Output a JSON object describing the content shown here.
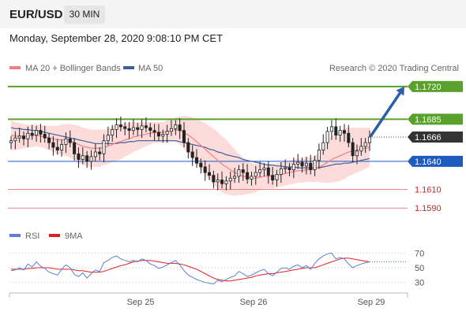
{
  "header": {
    "symbol": "EUR/USD",
    "timeframe": "30 MIN",
    "datetime": "Monday, September 28, 2020 9:08:10 PM CET"
  },
  "colors": {
    "resistance": "#5aa02c",
    "support": "#1e5bbf",
    "support_light": "#f08080",
    "current": "#333333",
    "bollinger_fill": "#fbd5d5",
    "ma20": "#f08080",
    "ma50": "#3d5f9e",
    "rsi": "#5b7fd6",
    "rsi_ma": "#e02020",
    "arrow": "#2b5fa8"
  },
  "chart_data": [
    {
      "type": "candlestick",
      "x_ticks": [
        "Sep 25",
        "Sep 26",
        "Sep 29"
      ],
      "ylim": [
        1.1575,
        1.173
      ],
      "legend": [
        {
          "name": "MA 20 + Bollinger Bands",
          "color": "#f08080"
        },
        {
          "name": "MA 50",
          "color": "#3d5f9e"
        }
      ],
      "legend_position": "top-left",
      "watermark": "Research © 2020 Trading Central",
      "levels": [
        {
          "value": 1.172,
          "label": "1.1720",
          "kind": "resistance"
        },
        {
          "value": 1.1685,
          "label": "1.1685",
          "kind": "resistance"
        },
        {
          "value": 1.1666,
          "label": "1.1666",
          "kind": "current"
        },
        {
          "value": 1.164,
          "label": "1.1640",
          "kind": "support"
        },
        {
          "value": 1.161,
          "label": "1.1610",
          "kind": "support_light"
        },
        {
          "value": 1.159,
          "label": "1.1590",
          "kind": "support_light"
        }
      ],
      "close": [
        1.1662,
        1.1665,
        1.1667,
        1.1664,
        1.167,
        1.1668,
        1.1673,
        1.1669,
        1.1665,
        1.166,
        1.1655,
        1.1652,
        1.1658,
        1.1664,
        1.166,
        1.1648,
        1.1642,
        1.1646,
        1.164,
        1.1645,
        1.165,
        1.1648,
        1.1662,
        1.1668,
        1.1674,
        1.1679,
        1.1677,
        1.1675,
        1.1673,
        1.1676,
        1.1674,
        1.1678,
        1.1676,
        1.1673,
        1.1671,
        1.1667,
        1.1669,
        1.1672,
        1.1675,
        1.1679,
        1.1673,
        1.166,
        1.165,
        1.1644,
        1.1638,
        1.1634,
        1.1628,
        1.1625,
        1.1618,
        1.162,
        1.1616,
        1.1619,
        1.1622,
        1.1624,
        1.1631,
        1.1628,
        1.1621,
        1.1624,
        1.1628,
        1.1631,
        1.1633,
        1.1625,
        1.162,
        1.1626,
        1.1632,
        1.1633,
        1.1631,
        1.1637,
        1.1639,
        1.1635,
        1.1638,
        1.1631,
        1.1641,
        1.1652,
        1.166,
        1.1672,
        1.1677,
        1.1668,
        1.1673,
        1.167,
        1.166,
        1.1646,
        1.1651,
        1.1656,
        1.166,
        1.1666
      ],
      "ma20": [
        1.1668,
        1.1667,
        1.1667,
        1.1667,
        1.1667,
        1.1667,
        1.1668,
        1.1667,
        1.1666,
        1.1665,
        1.1664,
        1.1663,
        1.1663,
        1.1663,
        1.1662,
        1.166,
        1.1658,
        1.1656,
        1.1655,
        1.1654,
        1.1654,
        1.1654,
        1.1655,
        1.1656,
        1.1658,
        1.166,
        1.1661,
        1.1663,
        1.1664,
        1.1666,
        1.1667,
        1.1668,
        1.1669,
        1.167,
        1.1671,
        1.1671,
        1.1671,
        1.1672,
        1.1673,
        1.1674,
        1.1673,
        1.1671,
        1.1668,
        1.1665,
        1.1661,
        1.1657,
        1.1653,
        1.1649,
        1.1645,
        1.1641,
        1.1637,
        1.1634,
        1.1631,
        1.1628,
        1.1626,
        1.1624,
        1.1623,
        1.1622,
        1.1622,
        1.1623,
        1.1624,
        1.1624,
        1.1624,
        1.1625,
        1.1626,
        1.1627,
        1.1628,
        1.1629,
        1.163,
        1.163,
        1.1631,
        1.1631,
        1.1632,
        1.1634,
        1.1636,
        1.1639,
        1.1642,
        1.1644,
        1.1646,
        1.1648,
        1.165,
        1.1651,
        1.1652,
        1.1653,
        1.1654,
        1.1655
      ],
      "ma50": [
        1.1676,
        1.1675,
        1.1675,
        1.1674,
        1.1674,
        1.1673,
        1.1673,
        1.1672,
        1.1671,
        1.167,
        1.1669,
        1.1668,
        1.1667,
        1.1666,
        1.1665,
        1.1664,
        1.1663,
        1.1662,
        1.1661,
        1.166,
        1.1659,
        1.1659,
        1.1659,
        1.1659,
        1.1659,
        1.1659,
        1.166,
        1.166,
        1.1661,
        1.1661,
        1.1662,
        1.1662,
        1.1662,
        1.1662,
        1.1662,
        1.1662,
        1.1662,
        1.1662,
        1.1662,
        1.1662,
        1.1661,
        1.166,
        1.1659,
        1.1658,
        1.1657,
        1.1656,
        1.1655,
        1.1653,
        1.1652,
        1.165,
        1.1649,
        1.1647,
        1.1646,
        1.1645,
        1.1644,
        1.1642,
        1.1641,
        1.164,
        1.1639,
        1.1638,
        1.1637,
        1.1636,
        1.1636,
        1.1635,
        1.1635,
        1.1634,
        1.1634,
        1.1634,
        1.1633,
        1.1633,
        1.1633,
        1.1633,
        1.1633,
        1.1633,
        1.1634,
        1.1635,
        1.1636,
        1.1637,
        1.1637,
        1.1638,
        1.1638,
        1.1639,
        1.164,
        1.1641,
        1.1642,
        1.1643
      ],
      "band_width": [
        0.0016,
        0.0015,
        0.0014,
        0.0013,
        0.0012,
        0.0012,
        0.0012,
        0.0012,
        0.0012,
        0.0013,
        0.0014,
        0.0015,
        0.0016,
        0.0017,
        0.0018,
        0.0019,
        0.002,
        0.002,
        0.002,
        0.002,
        0.002,
        0.002,
        0.0019,
        0.0019,
        0.0019,
        0.0019,
        0.0019,
        0.0018,
        0.0017,
        0.0016,
        0.0015,
        0.0014,
        0.0013,
        0.0012,
        0.0011,
        0.0011,
        0.0011,
        0.0012,
        0.0012,
        0.0013,
        0.0015,
        0.0018,
        0.002,
        0.0022,
        0.0024,
        0.0026,
        0.0028,
        0.0029,
        0.003,
        0.003,
        0.003,
        0.0029,
        0.0027,
        0.0025,
        0.0022,
        0.002,
        0.0018,
        0.0016,
        0.0015,
        0.0014,
        0.0013,
        0.0013,
        0.0013,
        0.0013,
        0.0013,
        0.0013,
        0.0013,
        0.0013,
        0.0013,
        0.0013,
        0.0013,
        0.0013,
        0.0014,
        0.0016,
        0.0019,
        0.0022,
        0.0025,
        0.0026,
        0.0027,
        0.0027,
        0.0026,
        0.0025,
        0.0024,
        0.0023,
        0.0022,
        0.0021
      ]
    },
    {
      "type": "line",
      "legend": [
        {
          "name": "RSI",
          "color": "#5b7fd6"
        },
        {
          "name": "9MA",
          "color": "#e02020"
        }
      ],
      "y_ticks": [
        "70",
        "50",
        "30"
      ],
      "ylim": [
        20,
        80
      ],
      "series": [
        {
          "name": "RSI",
          "values": [
            46,
            47,
            50,
            47,
            55,
            51,
            58,
            52,
            49,
            44,
            42,
            40,
            48,
            54,
            50,
            41,
            38,
            43,
            36,
            42,
            47,
            45,
            57,
            60,
            64,
            66,
            62,
            60,
            58,
            60,
            58,
            62,
            60,
            55,
            53,
            49,
            51,
            54,
            57,
            60,
            54,
            46,
            40,
            37,
            34,
            32,
            30,
            29,
            28,
            33,
            31,
            34,
            37,
            39,
            45,
            42,
            38,
            40,
            43,
            46,
            48,
            42,
            39,
            44,
            49,
            50,
            48,
            52,
            54,
            50,
            53,
            48,
            56,
            62,
            66,
            69,
            70,
            62,
            64,
            62,
            55,
            50,
            53,
            55,
            57,
            58
          ]
        },
        {
          "name": "9MA",
          "values": [
            48,
            48,
            48,
            48,
            49,
            49,
            50,
            50,
            50,
            50,
            49,
            48,
            48,
            48,
            48,
            47,
            46,
            46,
            45,
            44,
            44,
            44,
            45,
            47,
            49,
            51,
            53,
            54,
            56,
            58,
            59,
            60,
            60,
            60,
            59,
            58,
            57,
            56,
            56,
            56,
            55,
            54,
            52,
            50,
            48,
            45,
            42,
            39,
            36,
            34,
            33,
            32,
            32,
            33,
            34,
            35,
            36,
            37,
            39,
            40,
            41,
            42,
            42,
            43,
            44,
            45,
            46,
            47,
            48,
            49,
            50,
            50,
            50,
            52,
            54,
            56,
            58,
            60,
            62,
            63,
            63,
            62,
            61,
            60,
            59,
            58
          ]
        }
      ]
    }
  ]
}
